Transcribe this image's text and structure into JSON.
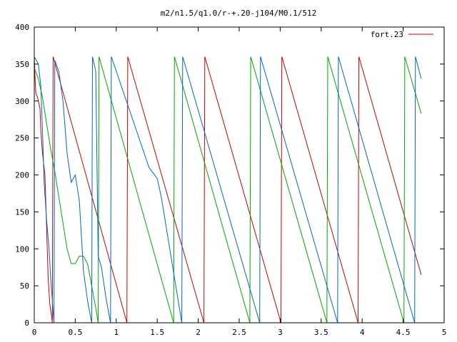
{
  "chart_data": {
    "type": "line",
    "title": "m2/n1.5/q1.0/r-+.20-j104/M0.1/512",
    "xlabel": "",
    "ylabel": "",
    "xlim": [
      0,
      5
    ],
    "ylim": [
      0,
      400
    ],
    "x_ticks": [
      "0",
      "0.5",
      "1",
      "1.5",
      "2",
      "2.5",
      "3",
      "3.5",
      "4",
      "4.5",
      "5"
    ],
    "y_ticks": [
      "0",
      "50",
      "100",
      "150",
      "200",
      "250",
      "300",
      "350",
      "400"
    ],
    "grid": false,
    "legend_position": "top-right",
    "legend": [
      "fort.23"
    ],
    "series": [
      {
        "name": "fort.23",
        "color": "#cc0000",
        "points": [
          [
            0.0,
            360
          ],
          [
            0.01,
            330
          ],
          [
            0.02,
            310
          ],
          [
            0.04,
            305
          ],
          [
            0.05,
            300
          ],
          [
            0.07,
            290
          ],
          [
            0.08,
            260
          ],
          [
            0.1,
            230
          ],
          [
            0.13,
            200
          ],
          [
            0.15,
            130
          ],
          [
            0.17,
            60
          ],
          [
            0.19,
            25
          ],
          [
            0.21,
            10
          ],
          [
            0.22,
            0
          ],
          [
            0.23,
            360
          ],
          [
            1.13,
            0
          ],
          [
            1.14,
            360
          ],
          [
            2.07,
            0
          ],
          [
            2.08,
            360
          ],
          [
            3.01,
            0
          ],
          [
            3.02,
            360
          ],
          [
            3.95,
            0
          ],
          [
            3.96,
            360
          ],
          [
            4.72,
            65
          ]
        ]
      },
      {
        "name": "",
        "color": "#00aa00",
        "points": [
          [
            0.0,
            345
          ],
          [
            0.05,
            330
          ],
          [
            0.1,
            305
          ],
          [
            0.15,
            270
          ],
          [
            0.2,
            235
          ],
          [
            0.25,
            205
          ],
          [
            0.3,
            170
          ],
          [
            0.35,
            135
          ],
          [
            0.4,
            100
          ],
          [
            0.45,
            80
          ],
          [
            0.5,
            80
          ],
          [
            0.55,
            90
          ],
          [
            0.6,
            90
          ],
          [
            0.65,
            80
          ],
          [
            0.7,
            50
          ],
          [
            0.75,
            20
          ],
          [
            0.78,
            0
          ],
          [
            0.79,
            360
          ],
          [
            1.7,
            0
          ],
          [
            1.71,
            360
          ],
          [
            2.63,
            0
          ],
          [
            2.64,
            360
          ],
          [
            3.57,
            0
          ],
          [
            3.58,
            360
          ],
          [
            4.51,
            0
          ],
          [
            4.52,
            360
          ],
          [
            4.72,
            283
          ]
        ]
      },
      {
        "name": "",
        "color": "#0066cc",
        "points": [
          [
            0.0,
            360
          ],
          [
            0.05,
            350
          ],
          [
            0.08,
            320
          ],
          [
            0.1,
            260
          ],
          [
            0.12,
            190
          ],
          [
            0.15,
            140
          ],
          [
            0.18,
            100
          ],
          [
            0.2,
            60
          ],
          [
            0.22,
            30
          ],
          [
            0.24,
            0
          ],
          [
            0.25,
            355
          ],
          [
            0.3,
            340
          ],
          [
            0.35,
            300
          ],
          [
            0.4,
            230
          ],
          [
            0.45,
            190
          ],
          [
            0.5,
            200
          ],
          [
            0.55,
            165
          ],
          [
            0.6,
            70
          ],
          [
            0.65,
            30
          ],
          [
            0.7,
            0
          ],
          [
            0.71,
            360
          ],
          [
            0.75,
            340
          ],
          [
            0.78,
            90
          ],
          [
            0.82,
            75
          ],
          [
            0.88,
            30
          ],
          [
            0.93,
            0
          ],
          [
            0.94,
            360
          ],
          [
            1.4,
            210
          ],
          [
            1.5,
            195
          ],
          [
            1.55,
            170
          ],
          [
            1.8,
            0
          ],
          [
            1.81,
            360
          ],
          [
            2.75,
            0
          ],
          [
            2.76,
            360
          ],
          [
            3.7,
            0
          ],
          [
            3.71,
            360
          ],
          [
            4.64,
            0
          ],
          [
            4.65,
            360
          ],
          [
            4.72,
            330
          ]
        ]
      }
    ]
  }
}
